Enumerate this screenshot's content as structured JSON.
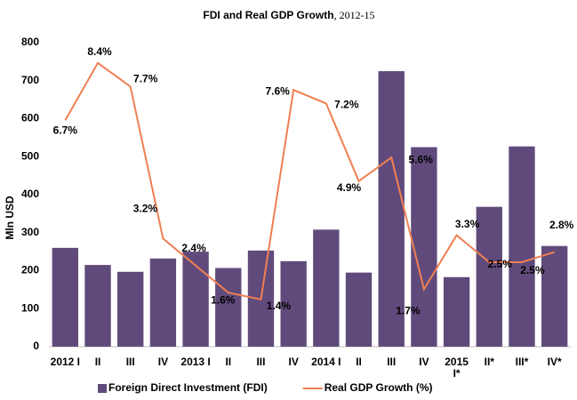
{
  "chart_data": {
    "type": "bar_line",
    "title": "FDI and Real GDP Growth",
    "title_suffix": ", 2012-15",
    "ylabel": "Mln USD",
    "categories": [
      "2012 I",
      "II",
      "III",
      "IV",
      "2013 I",
      "II",
      "III",
      "IV",
      "2014 I",
      "II",
      "III",
      "IV",
      "2015\nI*",
      "II*",
      "III*",
      "IV*"
    ],
    "series": [
      {
        "name": "Foreign Direct Investment (FDI)",
        "color": "#604a7b",
        "type": "bar",
        "values": [
          260,
          215,
          197,
          232,
          250,
          207,
          253,
          225,
          308,
          195,
          725,
          525,
          183,
          368,
          527,
          265
        ]
      },
      {
        "name": "Real GDP Growth (%)",
        "color": "#f07f52",
        "type": "line",
        "axis": "y2",
        "values": [
          6.7,
          8.4,
          7.7,
          3.2,
          2.4,
          1.6,
          1.4,
          7.6,
          7.2,
          4.9,
          5.6,
          1.7,
          3.3,
          2.5,
          2.5,
          2.8
        ],
        "value_labels": [
          "6.7%",
          "8.4%",
          "7.7%",
          "3.2%",
          "2.4%",
          "1.6%",
          "1.4%",
          "7.6%",
          "7.2%",
          "4.9%",
          "5.6%",
          "1.7%",
          "3.3%",
          "2.5%",
          "2.5%",
          "2.8%"
        ]
      }
    ],
    "ylim": [
      0,
      800
    ],
    "yticks": [
      0,
      100,
      200,
      300,
      400,
      500,
      600,
      700,
      800
    ],
    "y2lim": [
      0,
      9
    ],
    "legend": "bottom"
  }
}
